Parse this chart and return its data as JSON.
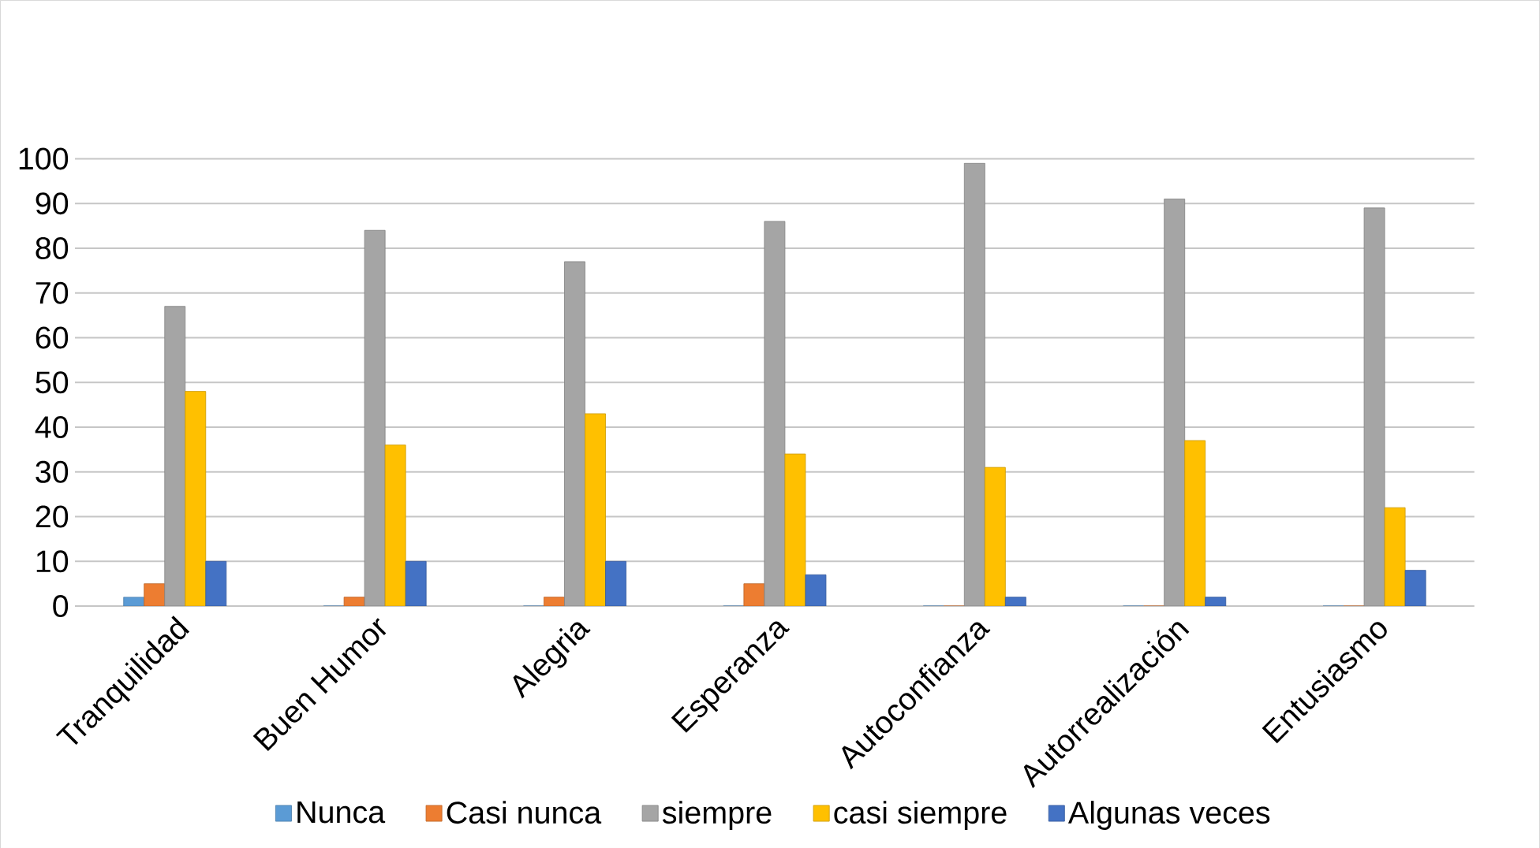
{
  "chart_data": {
    "type": "bar",
    "categories": [
      "Tranquilidad",
      "Buen Humor",
      "Alegria",
      "Esperanza",
      "Autoconfianza",
      "Autorrealización",
      "Entusiasmo"
    ],
    "series": [
      {
        "name": "Nunca",
        "color": "#5b9bd5",
        "values": [
          2,
          0,
          0,
          0,
          0,
          0,
          0
        ]
      },
      {
        "name": "Casi nunca",
        "color": "#ed7d31",
        "values": [
          5,
          2,
          2,
          5,
          0,
          0,
          0
        ]
      },
      {
        "name": "siempre",
        "color": "#a5a5a5",
        "values": [
          67,
          84,
          77,
          86,
          99,
          91,
          89
        ]
      },
      {
        "name": "casi siempre",
        "color": "#ffc000",
        "values": [
          48,
          36,
          43,
          34,
          31,
          37,
          22
        ]
      },
      {
        "name": "Algunas veces",
        "color": "#4472c4",
        "values": [
          10,
          10,
          10,
          7,
          2,
          2,
          8
        ]
      }
    ],
    "ylim": [
      0,
      100
    ],
    "yticks": [
      0,
      10,
      20,
      30,
      40,
      50,
      60,
      70,
      80,
      90,
      100
    ],
    "grid": "y",
    "legend": "bottom"
  }
}
